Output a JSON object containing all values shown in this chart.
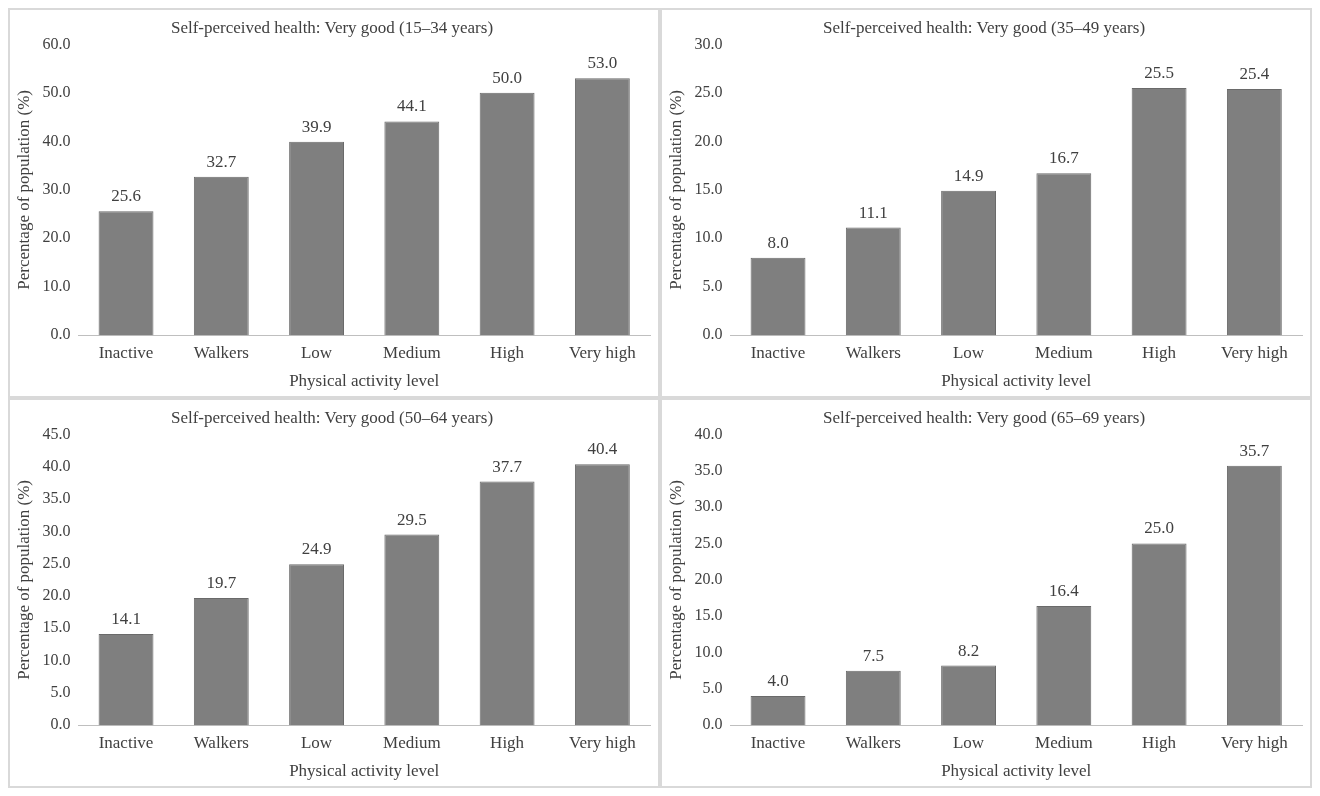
{
  "chart_data": [
    {
      "type": "bar",
      "title": "Self-perceived health: Very good (15–34 years)",
      "xlabel": "Physical activity level",
      "ylabel": "Percentage of population (%)",
      "categories": [
        "Inactive",
        "Walkers",
        "Low",
        "Medium",
        "High",
        "Very high"
      ],
      "values": [
        25.6,
        32.7,
        39.9,
        44.1,
        50.0,
        53.0
      ],
      "value_labels": [
        "25.6",
        "32.7",
        "39.9",
        "44.1",
        "50.0",
        "53.0"
      ],
      "color": "#7f7f7f",
      "ylim": [
        0,
        60
      ],
      "yticks": [
        {
          "value": 0,
          "label": "0.0"
        },
        {
          "value": 10,
          "label": "10.0"
        },
        {
          "value": 20,
          "label": "20.0"
        },
        {
          "value": 30,
          "label": "30.0"
        },
        {
          "value": 40,
          "label": "40.0"
        },
        {
          "value": 50,
          "label": "50.0"
        },
        {
          "value": 60,
          "label": "60.0"
        }
      ]
    },
    {
      "type": "bar",
      "title": "Self-perceived health: Very good (35–49 years)",
      "xlabel": "Physical activity level",
      "ylabel": "Percentage of population (%)",
      "categories": [
        "Inactive",
        "Walkers",
        "Low",
        "Medium",
        "High",
        "Very high"
      ],
      "values": [
        8.0,
        11.1,
        14.9,
        16.7,
        25.5,
        25.4
      ],
      "value_labels": [
        "8.0",
        "11.1",
        "14.9",
        "16.7",
        "25.5",
        "25.4"
      ],
      "color": "#7f7f7f",
      "ylim": [
        0,
        30
      ],
      "yticks": [
        {
          "value": 0,
          "label": "0.0"
        },
        {
          "value": 5,
          "label": "5.0"
        },
        {
          "value": 10,
          "label": "10.0"
        },
        {
          "value": 15,
          "label": "15.0"
        },
        {
          "value": 20,
          "label": "20.0"
        },
        {
          "value": 25,
          "label": "25.0"
        },
        {
          "value": 30,
          "label": "30.0"
        }
      ]
    },
    {
      "type": "bar",
      "title": "Self-perceived health: Very good (50–64 years)",
      "xlabel": "Physical activity level",
      "ylabel": "Percentage of population (%)",
      "categories": [
        "Inactive",
        "Walkers",
        "Low",
        "Medium",
        "High",
        "Very high"
      ],
      "values": [
        14.1,
        19.7,
        24.9,
        29.5,
        37.7,
        40.4
      ],
      "value_labels": [
        "14.1",
        "19.7",
        "24.9",
        "29.5",
        "37.7",
        "40.4"
      ],
      "color": "#7f7f7f",
      "ylim": [
        0,
        45
      ],
      "yticks": [
        {
          "value": 0,
          "label": "0.0"
        },
        {
          "value": 5,
          "label": "5.0"
        },
        {
          "value": 10,
          "label": "10.0"
        },
        {
          "value": 15,
          "label": "15.0"
        },
        {
          "value": 20,
          "label": "20.0"
        },
        {
          "value": 25,
          "label": "25.0"
        },
        {
          "value": 30,
          "label": "30.0"
        },
        {
          "value": 35,
          "label": "35.0"
        },
        {
          "value": 40,
          "label": "40.0"
        },
        {
          "value": 45,
          "label": "45.0"
        }
      ]
    },
    {
      "type": "bar",
      "title": "Self-perceived health: Very good (65–69 years)",
      "xlabel": "Physical activity level",
      "ylabel": "Percentage of population (%)",
      "categories": [
        "Inactive",
        "Walkers",
        "Low",
        "Medium",
        "High",
        "Very high"
      ],
      "values": [
        4.0,
        7.5,
        8.2,
        16.4,
        25.0,
        35.7
      ],
      "value_labels": [
        "4.0",
        "7.5",
        "8.2",
        "16.4",
        "25.0",
        "35.7"
      ],
      "color": "#7f7f7f",
      "ylim": [
        0,
        40
      ],
      "yticks": [
        {
          "value": 0,
          "label": "0.0"
        },
        {
          "value": 5,
          "label": "5.0"
        },
        {
          "value": 10,
          "label": "10.0"
        },
        {
          "value": 15,
          "label": "15.0"
        },
        {
          "value": 20,
          "label": "20.0"
        },
        {
          "value": 25,
          "label": "25.0"
        },
        {
          "value": 30,
          "label": "30.0"
        },
        {
          "value": 35,
          "label": "35.0"
        },
        {
          "value": 40,
          "label": "40.0"
        }
      ]
    }
  ]
}
